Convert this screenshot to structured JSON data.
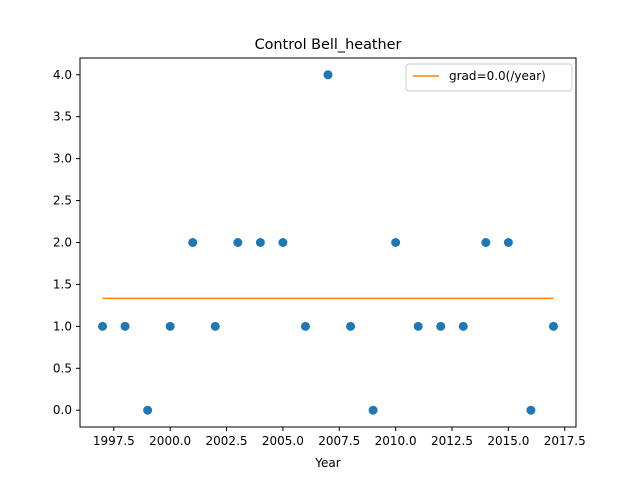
{
  "chart_data": {
    "type": "scatter",
    "title": "Control Bell_heather",
    "xlabel": "Year",
    "ylabel": "",
    "xlim": [
      1996.0,
      2018.0
    ],
    "ylim": [
      -0.2,
      4.2
    ],
    "xticks": [
      1997.5,
      2000.0,
      2002.5,
      2005.0,
      2007.5,
      2010.0,
      2012.5,
      2015.0,
      2017.5
    ],
    "xtick_labels": [
      "1997.5",
      "2000.0",
      "2002.5",
      "2005.0",
      "2007.5",
      "2010.0",
      "2012.5",
      "2015.0",
      "2017.5"
    ],
    "yticks": [
      0.0,
      0.5,
      1.0,
      1.5,
      2.0,
      2.5,
      3.0,
      3.5,
      4.0
    ],
    "ytick_labels": [
      "0.0",
      "0.5",
      "1.0",
      "1.5",
      "2.0",
      "2.5",
      "3.0",
      "3.5",
      "4.0"
    ],
    "grid": false,
    "legend_position": "top-right",
    "series": [
      {
        "type": "scatter",
        "color": "#1f77b4",
        "x": [
          1997,
          1998,
          1999,
          2000,
          2001,
          2002,
          2003,
          2004,
          2005,
          2006,
          2007,
          2008,
          2009,
          2010,
          2011,
          2012,
          2013,
          2014,
          2015,
          2016,
          2017
        ],
        "y": [
          1,
          1,
          0,
          1,
          2,
          1,
          2,
          2,
          2,
          1,
          4,
          1,
          0,
          2,
          1,
          1,
          1,
          2,
          2,
          0,
          1
        ]
      },
      {
        "type": "line",
        "name": "grad=0.0(/year)",
        "color": "#ff7f0e",
        "x": [
          1997,
          2017
        ],
        "y": [
          1.333,
          1.333
        ]
      }
    ]
  }
}
